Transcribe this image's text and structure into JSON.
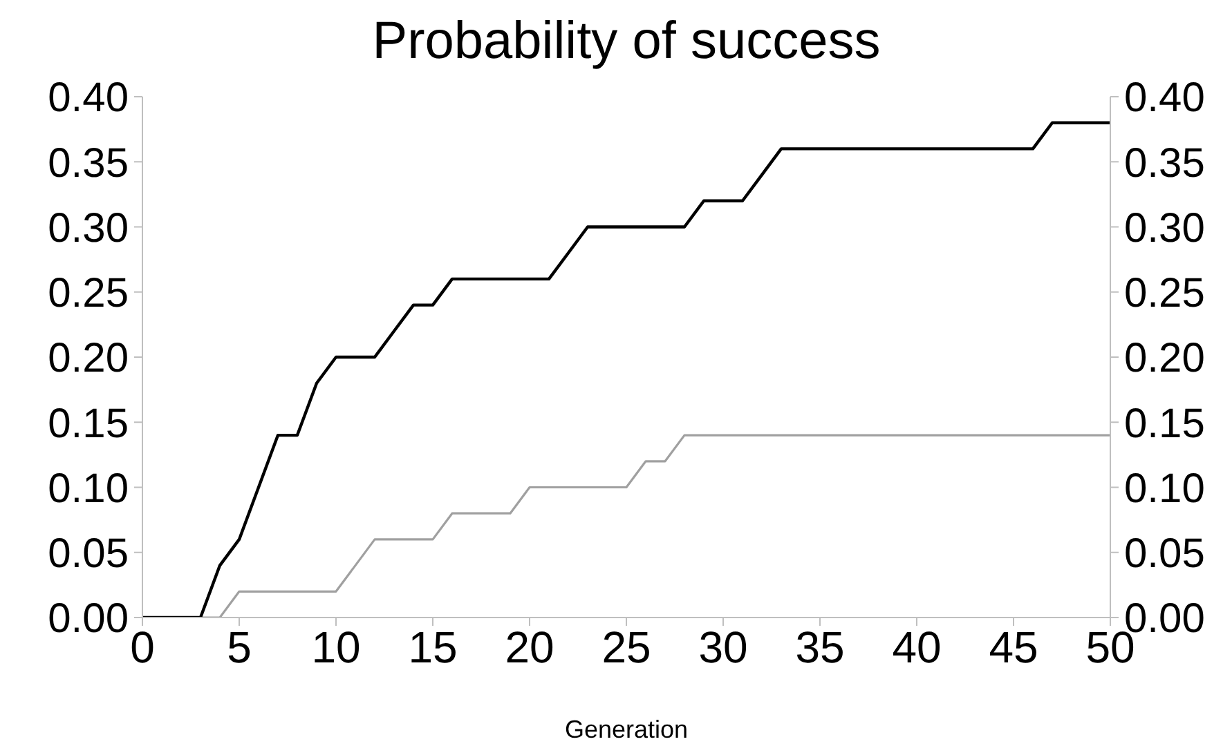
{
  "chart_data": {
    "type": "line",
    "title": "Probability of success",
    "xlabel": "Generation",
    "x": [
      0,
      1,
      2,
      3,
      4,
      5,
      6,
      7,
      8,
      9,
      10,
      11,
      12,
      13,
      14,
      15,
      16,
      17,
      18,
      19,
      20,
      21,
      22,
      23,
      24,
      25,
      26,
      27,
      28,
      29,
      30,
      31,
      32,
      33,
      34,
      35,
      36,
      37,
      38,
      39,
      40,
      41,
      42,
      43,
      44,
      45,
      46,
      47,
      48,
      49,
      50
    ],
    "series": [
      {
        "color": "#a0a0a0",
        "values": [
          0,
          0,
          0,
          0,
          0,
          0.02,
          0.02,
          0.02,
          0.02,
          0.02,
          0.02,
          0.04,
          0.06,
          0.06,
          0.06,
          0.06,
          0.08,
          0.08,
          0.08,
          0.08,
          0.1,
          0.1,
          0.1,
          0.1,
          0.1,
          0.1,
          0.12,
          0.12,
          0.14,
          0.14,
          0.14,
          0.14,
          0.14,
          0.14,
          0.14,
          0.14,
          0.14,
          0.14,
          0.14,
          0.14,
          0.14,
          0.14,
          0.14,
          0.14,
          0.14,
          0.14,
          0.14,
          0.14,
          0.14,
          0.14,
          0.14
        ]
      },
      {
        "color": "#000000",
        "values": [
          0,
          0,
          0,
          0,
          0.04,
          0.06,
          0.1,
          0.14,
          0.14,
          0.18,
          0.2,
          0.2,
          0.2,
          0.22,
          0.24,
          0.24,
          0.26,
          0.26,
          0.26,
          0.26,
          0.26,
          0.26,
          0.28,
          0.3,
          0.3,
          0.3,
          0.3,
          0.3,
          0.3,
          0.32,
          0.32,
          0.32,
          0.34,
          0.36,
          0.36,
          0.36,
          0.36,
          0.36,
          0.36,
          0.36,
          0.36,
          0.36,
          0.36,
          0.36,
          0.36,
          0.36,
          0.36,
          0.38,
          0.38,
          0.38,
          0.38
        ]
      }
    ],
    "xlim": [
      0,
      50
    ],
    "xticks": [
      0,
      5,
      10,
      15,
      20,
      25,
      30,
      35,
      40,
      45,
      50
    ],
    "ylim": [
      0,
      0.4
    ],
    "yticks": [
      {
        "value": 0,
        "label": "0.00"
      },
      {
        "value": 0.05,
        "label": "0.05"
      },
      {
        "value": 0.1,
        "label": "0.10"
      },
      {
        "value": 0.15,
        "label": "0.15"
      },
      {
        "value": 0.2,
        "label": "0.20"
      },
      {
        "value": 0.25,
        "label": "0.25"
      },
      {
        "value": 0.3,
        "label": "0.30"
      },
      {
        "value": 0.35,
        "label": "0.35"
      },
      {
        "value": 0.4,
        "label": "0.40"
      }
    ],
    "y2lim": [
      0,
      0.4
    ],
    "y2ticks": [
      {
        "value": 0,
        "label": "0.00"
      },
      {
        "value": 0.05,
        "label": "0.05"
      },
      {
        "value": 0.1,
        "label": "0.10"
      },
      {
        "value": 0.15,
        "label": "0.15"
      },
      {
        "value": 0.2,
        "label": "0.20"
      },
      {
        "value": 0.25,
        "label": "0.25"
      },
      {
        "value": 0.3,
        "label": "0.30"
      },
      {
        "value": 0.35,
        "label": "0.35"
      },
      {
        "value": 0.4,
        "label": "0.40"
      }
    ],
    "grid": false,
    "legend": false,
    "marker": "none",
    "line_style": "solid"
  }
}
